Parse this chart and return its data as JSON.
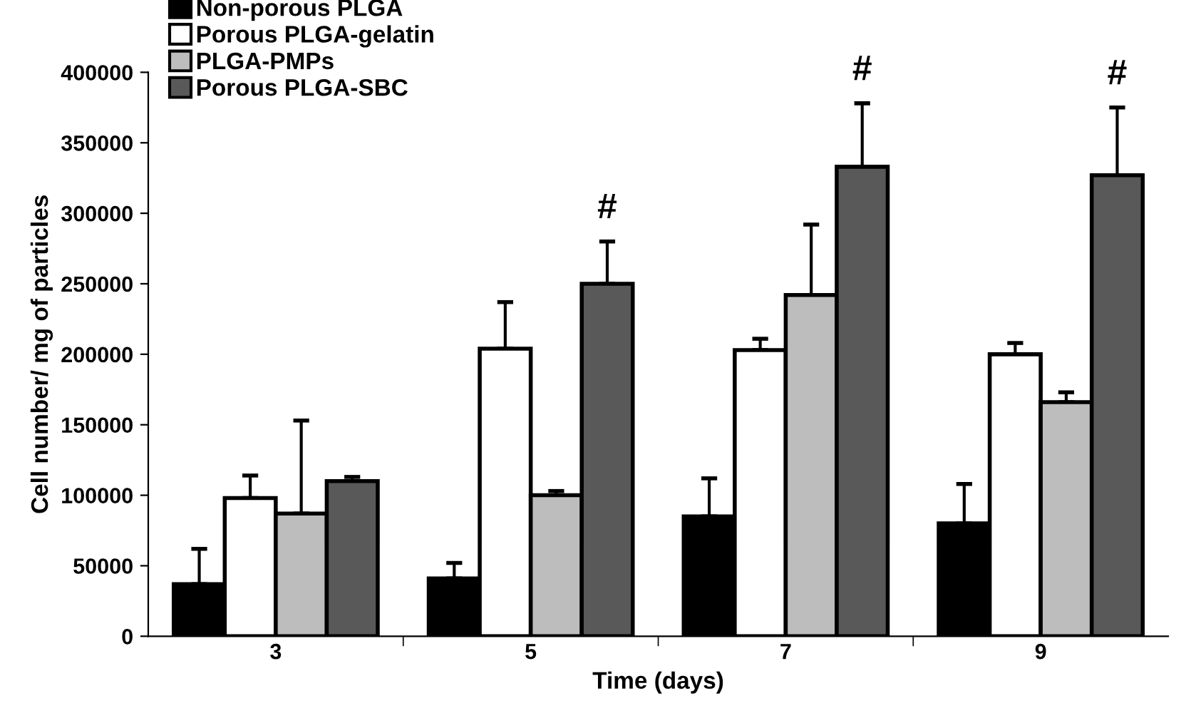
{
  "chart_data": {
    "type": "bar",
    "xlabel": "Time (days)",
    "ylabel": "Cell number/ mg of particles",
    "categories": [
      "3",
      "5",
      "7",
      "9"
    ],
    "series": [
      {
        "name": "Non-porous PLGA",
        "color": "#000000",
        "values": [
          37000,
          41000,
          85000,
          80000
        ],
        "errors": [
          25000,
          11000,
          27000,
          28000
        ]
      },
      {
        "name": "Porous PLGA-gelatin",
        "color": "#ffffff",
        "values": [
          98000,
          204000,
          203000,
          200000
        ],
        "errors": [
          16000,
          33000,
          8000,
          8000
        ]
      },
      {
        "name": "PLGA-PMPs",
        "color": "#bdbdbd",
        "values": [
          87000,
          100000,
          242000,
          166000
        ],
        "errors": [
          66000,
          3000,
          50000,
          7000
        ]
      },
      {
        "name": "Porous PLGA-SBC",
        "color": "#595959",
        "values": [
          110000,
          250000,
          333000,
          327000
        ],
        "errors": [
          3000,
          30000,
          45000,
          48000
        ]
      }
    ],
    "ylim": [
      0,
      400000
    ],
    "yticks": [
      0,
      50000,
      100000,
      150000,
      200000,
      250000,
      300000,
      350000,
      400000
    ],
    "annotations": [
      "#",
      "#",
      "#"
    ],
    "grid": false,
    "legend": "top left"
  }
}
